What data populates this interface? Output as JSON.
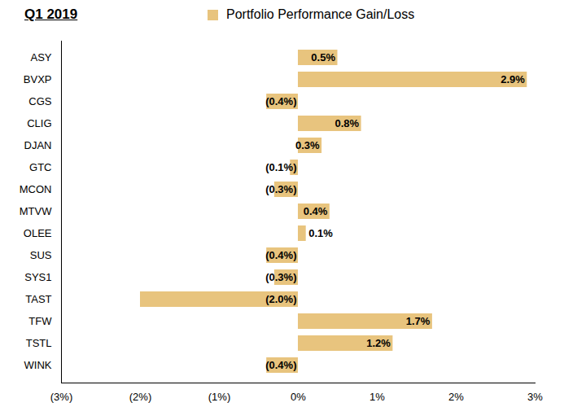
{
  "chart_data": {
    "type": "bar",
    "title": "Q1 2019",
    "orientation": "horizontal",
    "categories": [
      "ASY",
      "BVXP",
      "CGS",
      "CLIG",
      "DJAN",
      "GTC",
      "MCON",
      "MTVW",
      "OLEE",
      "SUS",
      "SYS1",
      "TAST",
      "TFW",
      "TSTL",
      "WINK"
    ],
    "series": [
      {
        "name": "Portfolio Performance Gain/Loss",
        "color": "#e8c47e",
        "values": [
          0.5,
          2.9,
          -0.4,
          0.8,
          0.3,
          -0.1,
          -0.3,
          0.4,
          0.1,
          -0.4,
          -0.3,
          -2.0,
          1.7,
          1.2,
          -0.4
        ],
        "value_labels": [
          "0.5%",
          "2.9%",
          "(0.4%)",
          "0.8%",
          "0.3%",
          "(0.1%)",
          "(0.3%)",
          "0.4%",
          "0.1%",
          "(0.4%)",
          "(0.3%)",
          "(2.0%)",
          "1.7%",
          "1.2%",
          "(0.4%)"
        ]
      }
    ],
    "xlim": [
      -3,
      3
    ],
    "xticks": [
      {
        "value": -3,
        "label": "(3%)"
      },
      {
        "value": -2,
        "label": "(2%)"
      },
      {
        "value": -1,
        "label": "(1%)"
      },
      {
        "value": 0,
        "label": "0%"
      },
      {
        "value": 1,
        "label": "1%"
      },
      {
        "value": 2,
        "label": "2%"
      },
      {
        "value": 3,
        "label": "3%"
      }
    ],
    "grid": false,
    "legend": "top",
    "data_labels": true
  }
}
